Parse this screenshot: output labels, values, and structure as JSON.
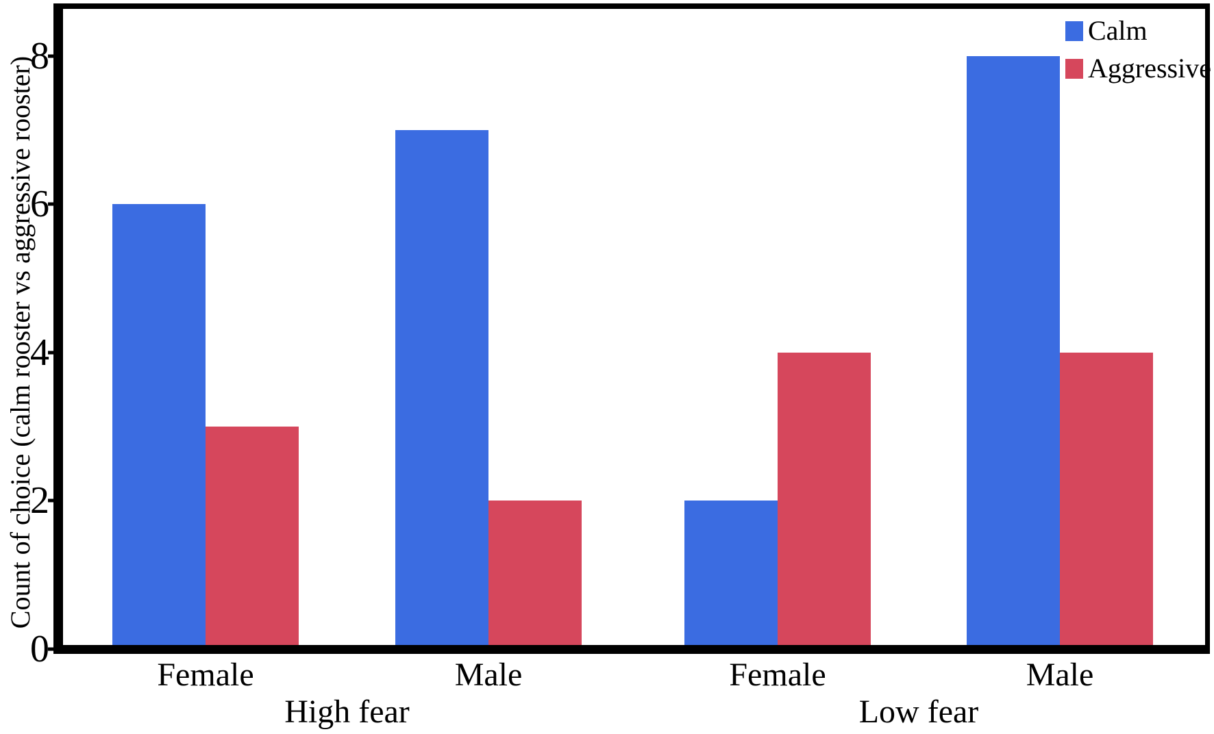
{
  "chart_data": {
    "type": "bar",
    "title": "",
    "xlabel": "",
    "ylabel": "Count of choice (calm rooster vs aggressive rooster)",
    "ylim": [
      0,
      8
    ],
    "yticks": [
      0,
      2,
      4,
      6,
      8
    ],
    "grid": false,
    "categories": [
      "Female",
      "Male",
      "Female",
      "Male"
    ],
    "cluster_labels": [
      "High fear",
      "Low fear"
    ],
    "clusters": [
      {
        "label": "High fear",
        "category_indexes": [
          0,
          1
        ]
      },
      {
        "label": "Low fear",
        "category_indexes": [
          2,
          3
        ]
      }
    ],
    "series": [
      {
        "name": "Calm",
        "color": "#3b6ce1",
        "values": [
          6,
          7,
          2,
          8
        ]
      },
      {
        "name": "Aggressive",
        "color": "#d6475c",
        "values": [
          3,
          2,
          4,
          4
        ]
      }
    ],
    "legend": {
      "position": "top-right",
      "entries": [
        {
          "label": "Calm",
          "color": "#3b6ce1"
        },
        {
          "label": "Aggressive",
          "color": "#d6475c"
        }
      ]
    },
    "axis_color": "#000000",
    "background_color": "#ffffff"
  }
}
